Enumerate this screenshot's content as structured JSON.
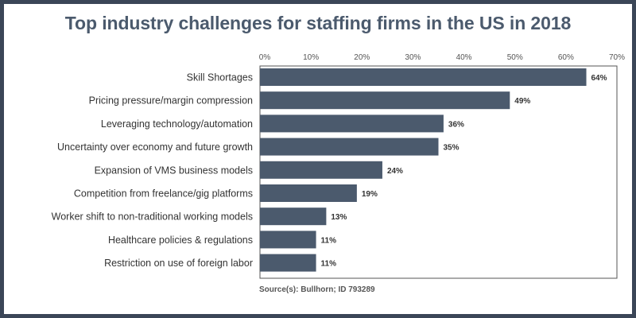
{
  "chart_data": {
    "type": "bar",
    "orientation": "horizontal",
    "title": "Top industry challenges for staffing firms in the US in 2018",
    "categories": [
      "Skill Shortages",
      "Pricing pressure/margin compression",
      "Leveraging technology/automation",
      "Uncertainty over economy and future growth",
      "Expansion of VMS business models",
      "Competition from freelance/gig platforms",
      "Worker shift to non-traditional working models",
      "Healthcare policies & regulations",
      "Restriction on use of foreign labor"
    ],
    "values": [
      64,
      49,
      36,
      35,
      24,
      19,
      13,
      11,
      11
    ],
    "value_labels": [
      "64%",
      "49%",
      "36%",
      "35%",
      "24%",
      "19%",
      "13%",
      "11%",
      "11%"
    ],
    "xlim": [
      0,
      70
    ],
    "xticks": [
      "0%",
      "10%",
      "20%",
      "30%",
      "40%",
      "50%",
      "60%",
      "70%"
    ],
    "xlabel": "",
    "ylabel": "",
    "grid": false,
    "source": "Source(s): Bullhorn; ID 793289",
    "bar_color": "#4b5a6d"
  }
}
